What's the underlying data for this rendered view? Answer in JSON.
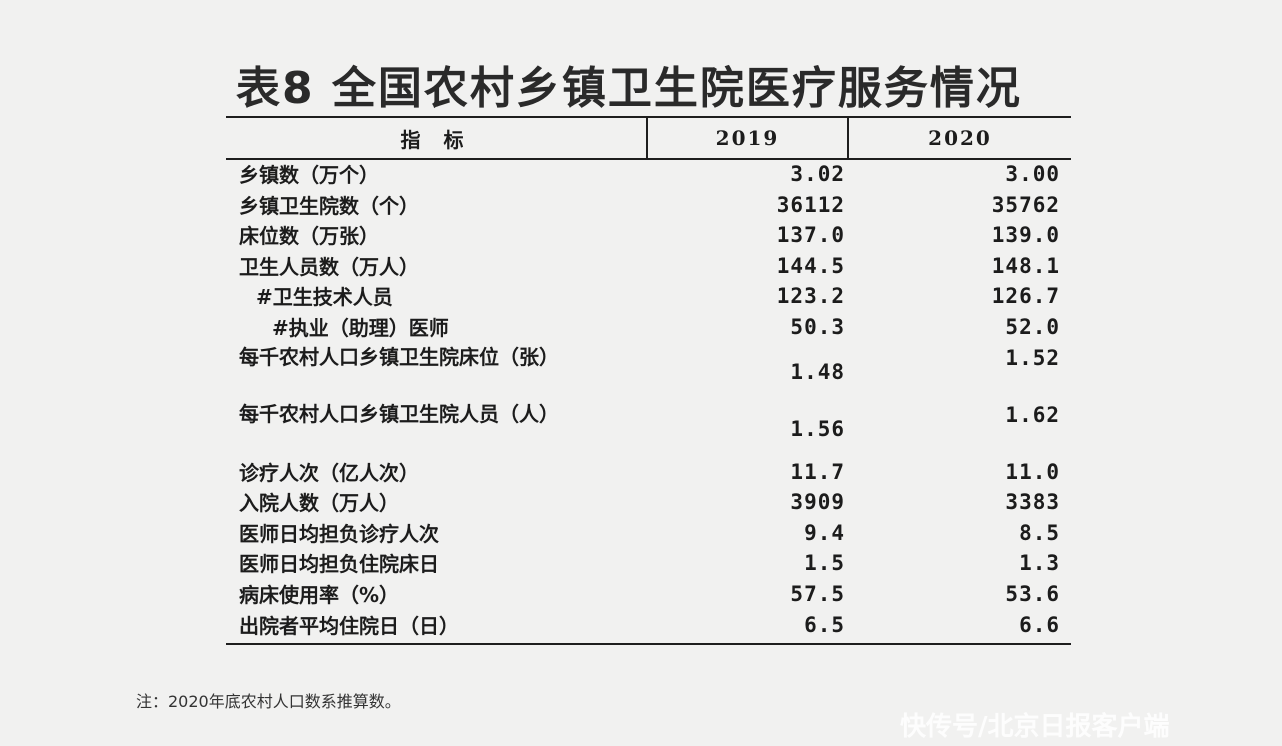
{
  "title": "表8   全国农村乡镇卫生院医疗服务情况",
  "header": {
    "indicator": "指 标",
    "col1": "2019",
    "col2": "2020"
  },
  "rows": [
    {
      "label": "乡镇数（万个）",
      "v2019": "3.02",
      "v2020": "3.00"
    },
    {
      "label": "乡镇卫生院数（个）",
      "v2019": "36112",
      "v2020": "35762"
    },
    {
      "label": "床位数（万张）",
      "v2019": "137.0",
      "v2020": "139.0"
    },
    {
      "label": "卫生人员数（万人）",
      "v2019": "144.5",
      "v2020": "148.1"
    },
    {
      "label": "#卫生技术人员",
      "v2019": "123.2",
      "v2020": "126.7"
    },
    {
      "label": "#执业（助理）医师",
      "v2019": "50.3",
      "v2020": "52.0"
    },
    {
      "label": "每千农村人口乡镇卫生院床位（张）",
      "v2019": "1.48",
      "v2020": "1.52"
    },
    {
      "label": "每千农村人口乡镇卫生院人员（人）",
      "v2019": "1.56",
      "v2020": "1.62"
    },
    {
      "label": "诊疗人次（亿人次）",
      "v2019": "11.7",
      "v2020": "11.0"
    },
    {
      "label": "入院人数（万人）",
      "v2019": "3909",
      "v2020": "3383"
    },
    {
      "label": "医师日均担负诊疗人次",
      "v2019": "9.4",
      "v2020": "8.5"
    },
    {
      "label": "医师日均担负住院床日",
      "v2019": "1.5",
      "v2020": "1.3"
    },
    {
      "label": "病床使用率（%）",
      "v2019": "57.5",
      "v2020": "53.6"
    },
    {
      "label": "出院者平均住院日（日）",
      "v2019": "6.5",
      "v2020": "6.6"
    }
  ],
  "note": "注：2020年底农村人口数系推算数。",
  "watermark": "快传号/北京日报客户端"
}
